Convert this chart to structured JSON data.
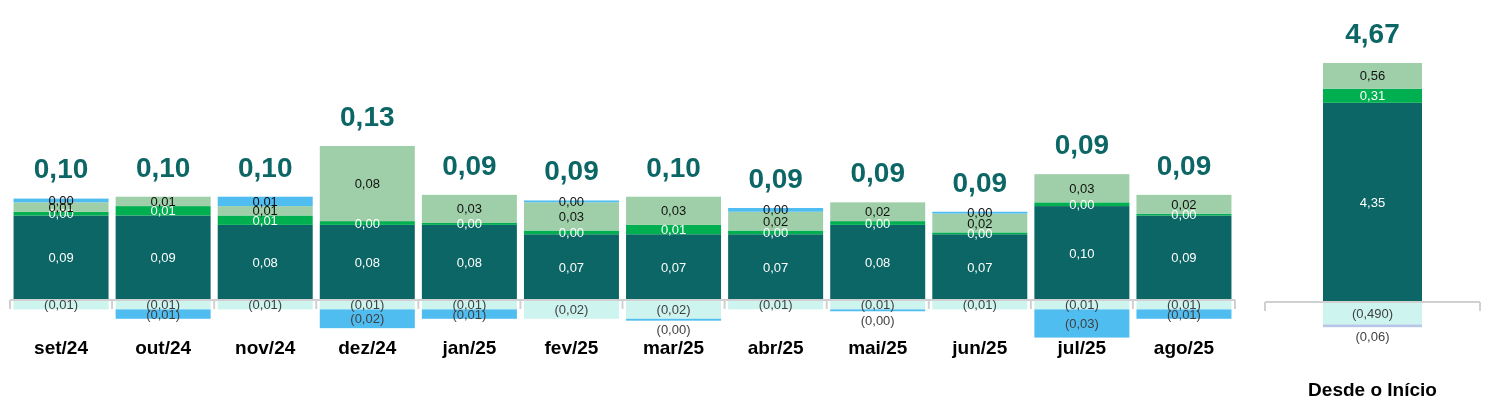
{
  "chart_data": [
    {
      "type": "bar",
      "stacked": true,
      "categories": [
        "set/24",
        "out/24",
        "nov/24",
        "dez/24",
        "jan/25",
        "fev/25",
        "mar/25",
        "abr/25",
        "mai/25",
        "jun/25",
        "jul/25",
        "ago/25"
      ],
      "series": [
        {
          "color": "#0b6665",
          "values": [
            0.09,
            0.09,
            0.08,
            0.08,
            0.08,
            0.07,
            0.07,
            0.07,
            0.08,
            0.07,
            0.1,
            0.09
          ],
          "value_labels": [
            "0,09",
            "0,09",
            "0,08",
            "0,08",
            "0,08",
            "0,07",
            "0,07",
            "0,07",
            "0,08",
            "0,07",
            "0,10",
            "0,09"
          ]
        },
        {
          "color": "#00b050",
          "values": [
            0.004,
            0.01,
            0.01,
            0.004,
            0.002,
            0.004,
            0.01,
            0.004,
            0.004,
            0.002,
            0.004,
            0.002
          ],
          "value_labels": [
            "0,00",
            "0,01",
            "0,01",
            "0,00",
            "0,00",
            "0,00",
            "0,01",
            "0,00",
            "0,00",
            "0,00",
            "0,00",
            "0,00"
          ]
        },
        {
          "color": "#9fcfa8",
          "values": [
            0.01,
            0.01,
            0.01,
            0.08,
            0.03,
            0.03,
            0.03,
            0.02,
            0.02,
            0.02,
            0.03,
            0.02
          ],
          "value_labels": [
            "0,01",
            "0,01",
            "0,01",
            "0,08",
            "0,03",
            "0,03",
            "0,03",
            "0,02",
            "0,02",
            "0,02",
            "0,03",
            "0,02"
          ]
        },
        {
          "color": "#4fbdf0",
          "values": [
            0.004,
            null,
            0.01,
            null,
            null,
            0.002,
            null,
            0.004,
            null,
            0.002,
            null,
            null
          ],
          "value_labels": [
            "0,00",
            null,
            "0,01",
            null,
            null,
            "0,00",
            null,
            "0,00",
            null,
            "0,00",
            null,
            null
          ]
        },
        {
          "color": "#cdf4ee",
          "values": [
            -0.01,
            -0.01,
            -0.01,
            -0.01,
            -0.01,
            -0.02,
            -0.02,
            -0.01,
            -0.01,
            -0.01,
            -0.01,
            -0.01
          ],
          "value_labels": [
            "(0,01)",
            "(0,01)",
            "(0,01)",
            "(0,01)",
            "(0,01)",
            "(0,02)",
            "(0,02)",
            "(0,01)",
            "(0,01)",
            "(0,01)",
            "(0,01)",
            "(0,01)"
          ]
        },
        {
          "color": "#4fbdf0",
          "values": [
            null,
            -0.01,
            null,
            -0.02,
            -0.01,
            null,
            -0.002,
            null,
            -0.002,
            null,
            -0.03,
            -0.01
          ],
          "value_labels": [
            null,
            "(0,01)",
            null,
            "(0,02)",
            "(0,01)",
            null,
            "(0,00)",
            null,
            "(0,00)",
            null,
            "(0,03)",
            "(0,01)"
          ]
        }
      ],
      "totals": [
        "0,10",
        "0,10",
        "0,10",
        "0,13",
        "0,09",
        "0,09",
        "0,10",
        "0,09",
        "0,09",
        "0,09",
        "0,09",
        "0,09"
      ]
    },
    {
      "type": "bar",
      "stacked": true,
      "categories": [
        "Desde o Início"
      ],
      "series": [
        {
          "color": "#0b6665",
          "values": [
            4.35
          ],
          "value_labels": [
            "4,35"
          ]
        },
        {
          "color": "#00b050",
          "values": [
            0.31
          ],
          "value_labels": [
            "0,31"
          ]
        },
        {
          "color": "#9fcfa8",
          "values": [
            0.56
          ],
          "value_labels": [
            "0,56"
          ]
        },
        {
          "color": "#cdf4ee",
          "values": [
            -0.49
          ],
          "value_labels": [
            "(0,490)"
          ]
        },
        {
          "color": "#b4c7e7",
          "values": [
            -0.06
          ],
          "value_labels": [
            "(0,06)"
          ]
        }
      ],
      "totals": [
        "4,67"
      ]
    }
  ]
}
